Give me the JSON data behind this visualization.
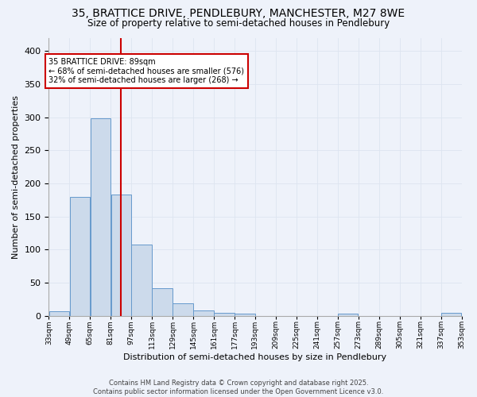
{
  "title_line1": "35, BRATTICE DRIVE, PENDLEBURY, MANCHESTER, M27 8WE",
  "title_line2": "Size of property relative to semi-detached houses in Pendlebury",
  "xlabel": "Distribution of semi-detached houses by size in Pendlebury",
  "ylabel": "Number of semi-detached properties",
  "bins": [
    33,
    49,
    65,
    81,
    97,
    113,
    129,
    145,
    161,
    177,
    193,
    209,
    225,
    241,
    257,
    273,
    289,
    305,
    321,
    337,
    353
  ],
  "counts": [
    7,
    180,
    298,
    183,
    107,
    42,
    19,
    8,
    4,
    3,
    0,
    0,
    0,
    0,
    3,
    0,
    0,
    0,
    0,
    4
  ],
  "bar_color": "#ccdaeb",
  "bar_edge_color": "#6699cc",
  "grid_color": "#dde4f0",
  "vline_x": 89,
  "vline_color": "#cc0000",
  "annotation_line1": "35 BRATTICE DRIVE: 89sqm",
  "annotation_line2": "← 68% of semi-detached houses are smaller (576)",
  "annotation_line3": "32% of semi-detached houses are larger (268) →",
  "annotation_box_color": "#cc0000",
  "annotation_box_bg": "#ffffff",
  "footer_line1": "Contains HM Land Registry data © Crown copyright and database right 2025.",
  "footer_line2": "Contains public sector information licensed under the Open Government Licence v3.0.",
  "bg_color": "#eef2fa",
  "plot_bg_color": "#eef2fa",
  "ylim": [
    0,
    420
  ],
  "xlim": [
    33,
    353
  ],
  "yticks": [
    0,
    50,
    100,
    150,
    200,
    250,
    300,
    350,
    400
  ]
}
